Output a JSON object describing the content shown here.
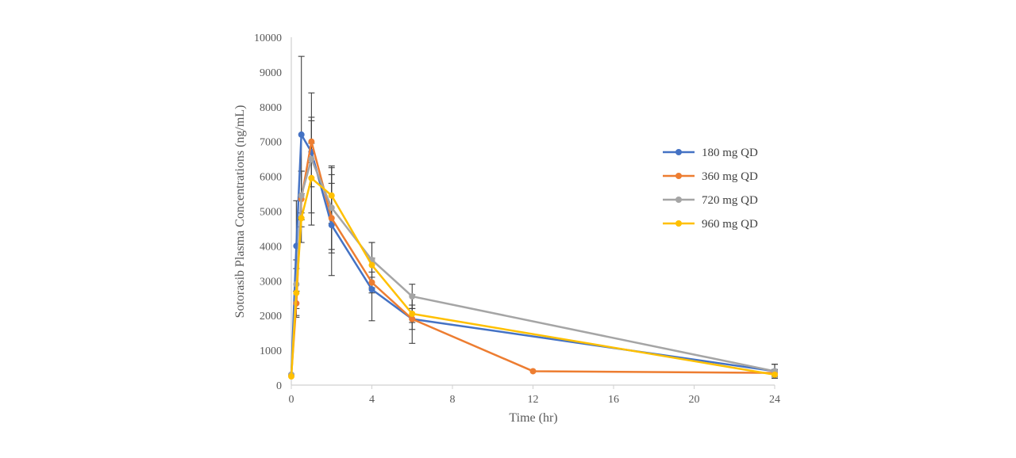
{
  "chart_data": {
    "type": "line",
    "xlabel": "Time (hr)",
    "ylabel": "Sotorasib Plasma Concentrations (ng/mL)",
    "xlim": [
      0,
      24
    ],
    "ylim": [
      0,
      10000
    ],
    "xticks": [
      0,
      4,
      8,
      12,
      16,
      20,
      24
    ],
    "yticks": [
      0,
      1000,
      2000,
      3000,
      4000,
      5000,
      6000,
      7000,
      8000,
      9000,
      10000
    ],
    "xtick_labels": [
      "0",
      "4",
      "8",
      "12",
      "16",
      "20",
      "24"
    ],
    "ytick_labels": [
      "0",
      "1000",
      "2000",
      "3000",
      "4000",
      "5000",
      "6000",
      "7000",
      "8000",
      "9000",
      "10000"
    ],
    "grid": false,
    "legend_position": "right",
    "error_bars": true,
    "series": [
      {
        "name": "180 mg QD",
        "color": "#4472C4",
        "x": [
          0,
          0.25,
          0.5,
          1,
          2,
          4,
          6,
          24
        ],
        "y": [
          300,
          4000,
          7200,
          6700,
          4600,
          2750,
          1900,
          400
        ],
        "err": [
          0,
          1300,
          2250,
          1000,
          1450,
          900,
          700,
          200
        ]
      },
      {
        "name": "360 mg QD",
        "color": "#ED7D31",
        "x": [
          0,
          0.25,
          0.5,
          1,
          2,
          4,
          6,
          12,
          24
        ],
        "y": [
          280,
          2350,
          5350,
          7000,
          4800,
          2950,
          1900,
          400,
          350
        ],
        "err": [
          0,
          350,
          800,
          600,
          1000,
          300,
          300,
          0,
          100
        ]
      },
      {
        "name": "720 mg QD",
        "color": "#A5A5A5",
        "x": [
          0,
          0.25,
          0.5,
          1,
          2,
          4,
          6,
          24
        ],
        "y": [
          300,
          2900,
          5450,
          6500,
          5100,
          3600,
          2550,
          400
        ],
        "err": [
          0,
          700,
          700,
          1900,
          1200,
          500,
          350,
          200
        ]
      },
      {
        "name": "960 mg QD",
        "color": "#FFC000",
        "x": [
          0,
          0.25,
          0.5,
          1,
          2,
          4,
          6,
          24
        ],
        "y": [
          250,
          2650,
          4800,
          5950,
          5450,
          3450,
          2050,
          300
        ],
        "err": [
          0,
          700,
          700,
          1000,
          800,
          650,
          250,
          100
        ]
      }
    ]
  }
}
